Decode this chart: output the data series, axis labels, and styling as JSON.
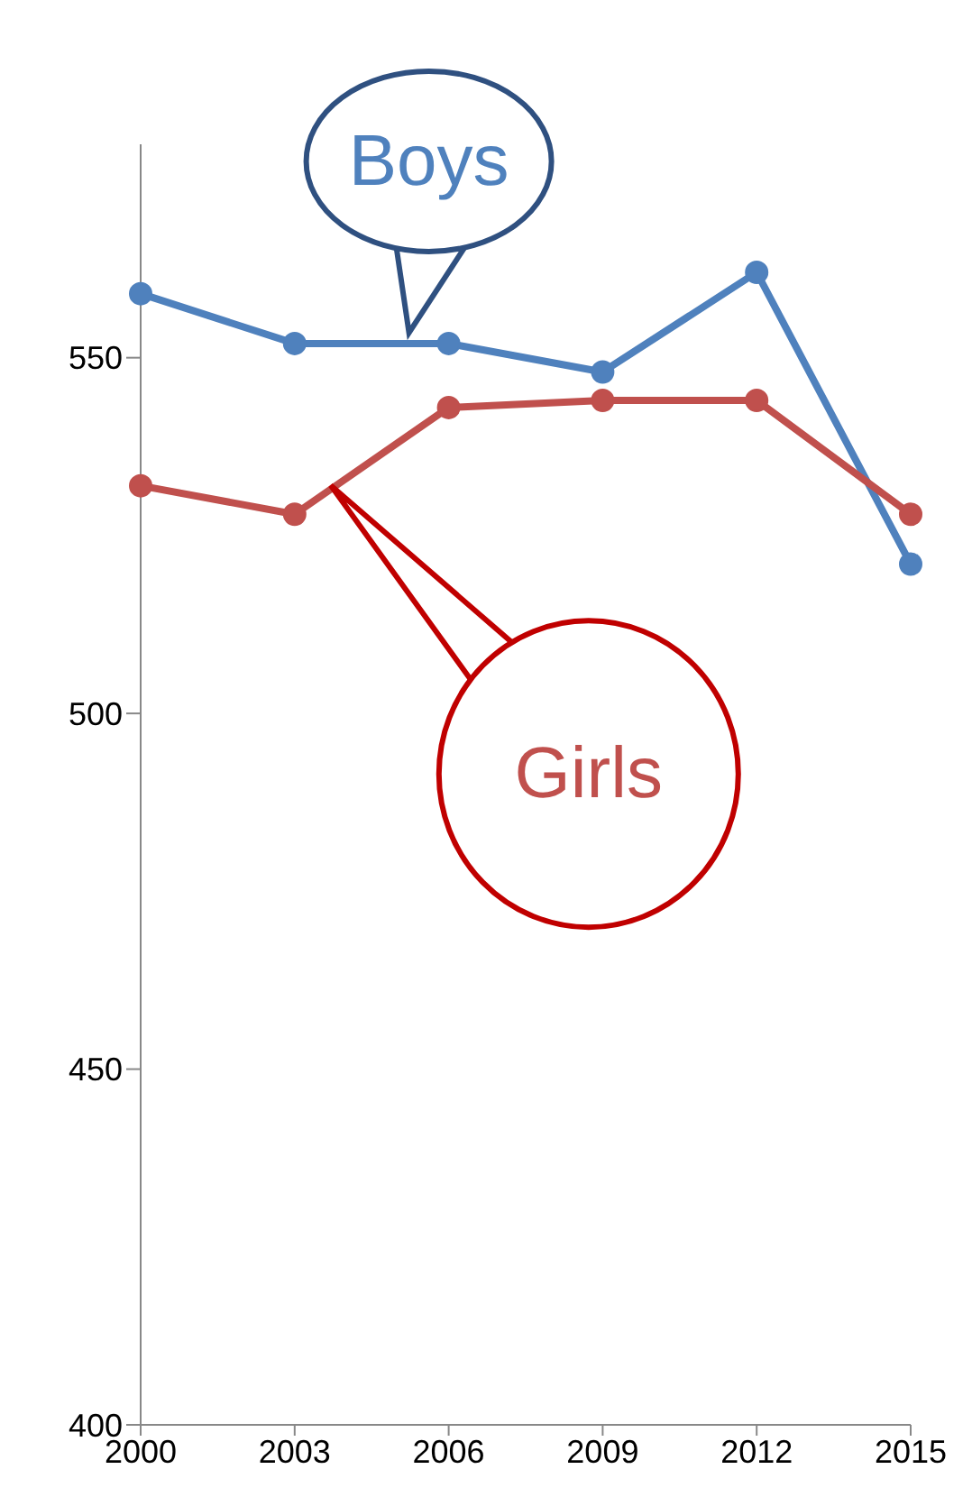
{
  "chart_data": {
    "type": "line",
    "categories": [
      "2000",
      "2003",
      "2006",
      "2009",
      "2012",
      "2015"
    ],
    "series": [
      {
        "name": "Boys",
        "color": "#4f81bd",
        "values": [
          559,
          552,
          552,
          548,
          562,
          521
        ]
      },
      {
        "name": "Girls",
        "color": "#c0504d",
        "values": [
          532,
          528,
          543,
          544,
          544,
          528
        ]
      }
    ],
    "ylim": [
      400,
      580
    ],
    "yticks": [
      400,
      450,
      500,
      550
    ],
    "grid": false,
    "legend": false,
    "marker": "circle",
    "line_style": "solid"
  }
}
